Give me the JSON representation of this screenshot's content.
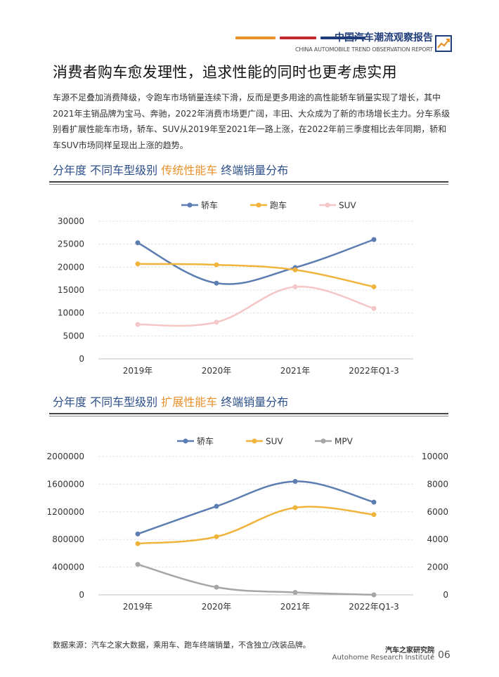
{
  "header": {
    "title": "中国汽车潮流观察报告",
    "subtitle": "CHINA AUTOMOBILE TREND OBSERVATION REPORT",
    "bar_colors": [
      "#e8912b",
      "#c4282f",
      "#1f3d7a"
    ],
    "icon": "trend-chart-icon"
  },
  "page_title": "消费者购车愈发理性，追求性能的同时也更考虑实用",
  "intro": "车源不足叠加消费降级，令跑车市场销量连续下滑，反而是更多用途的高性能轿车销量实现了增长，其中2021年主销品牌为宝马、奔驰，2022年消费市场更广阔，丰田、大众成为了新的市场增长主力。分车系级别看扩展性能车市场，轿车、SUV从2019年至2021年一路上涨，在2022年前三季度相比去年同期，轿和车SUV市场同样呈现出上涨的趋势。",
  "chart1": {
    "title_a": "分年度 不同车型级别 ",
    "title_b": "传统性能车",
    "title_c": " 终端销量分布"
  },
  "chart2": {
    "title_a": "分年度 不同车型级别 ",
    "title_b": "扩展性能车",
    "title_c": " 终端销量分布"
  },
  "chart_data": [
    {
      "type": "line",
      "categories": [
        "2019年",
        "2020年",
        "2021年",
        "2022年Q1-3"
      ],
      "series": [
        {
          "name": "轿车",
          "color": "#5b7db1",
          "values": [
            25300,
            16500,
            19900,
            26000
          ]
        },
        {
          "name": "跑车",
          "color": "#f0b43c",
          "values": [
            20700,
            20500,
            19400,
            15700
          ]
        },
        {
          "name": "SUV",
          "color": "#f5c6c6",
          "values": [
            7500,
            8000,
            15700,
            11000
          ]
        }
      ],
      "ylim": [
        0,
        30000
      ],
      "yticks": [
        0,
        5000,
        10000,
        15000,
        20000,
        25000,
        30000
      ],
      "legend_position": "top",
      "grid": true
    },
    {
      "type": "line",
      "categories": [
        "2019年",
        "2020年",
        "2021年",
        "2022年Q1-3"
      ],
      "series": [
        {
          "name": "轿车",
          "color": "#5b7db1",
          "axis": "right",
          "values": [
            4400,
            6400,
            8200,
            6700
          ]
        },
        {
          "name": "SUV",
          "color": "#f0b43c",
          "axis": "right",
          "values": [
            3700,
            4200,
            6300,
            5800
          ]
        },
        {
          "name": "MPV",
          "color": "#a6a6a6",
          "axis": "left",
          "values": [
            440000,
            110000,
            35000,
            0
          ]
        }
      ],
      "ylim_left": [
        0,
        2000000
      ],
      "yticks_left": [
        0,
        400000,
        800000,
        1200000,
        1600000,
        2000000
      ],
      "ylim_right": [
        0,
        10000
      ],
      "yticks_right": [
        0,
        2000,
        4000,
        6000,
        8000,
        10000
      ],
      "legend_position": "top",
      "grid": true
    }
  ],
  "footer": {
    "source": "数据来源：汽车之家大数据，乘用车、跑车终端销量，不含独立/改装品牌。",
    "institute_cn": "汽车之家研究院",
    "institute_en": "Autohome Research Institute",
    "page_number": "06"
  }
}
